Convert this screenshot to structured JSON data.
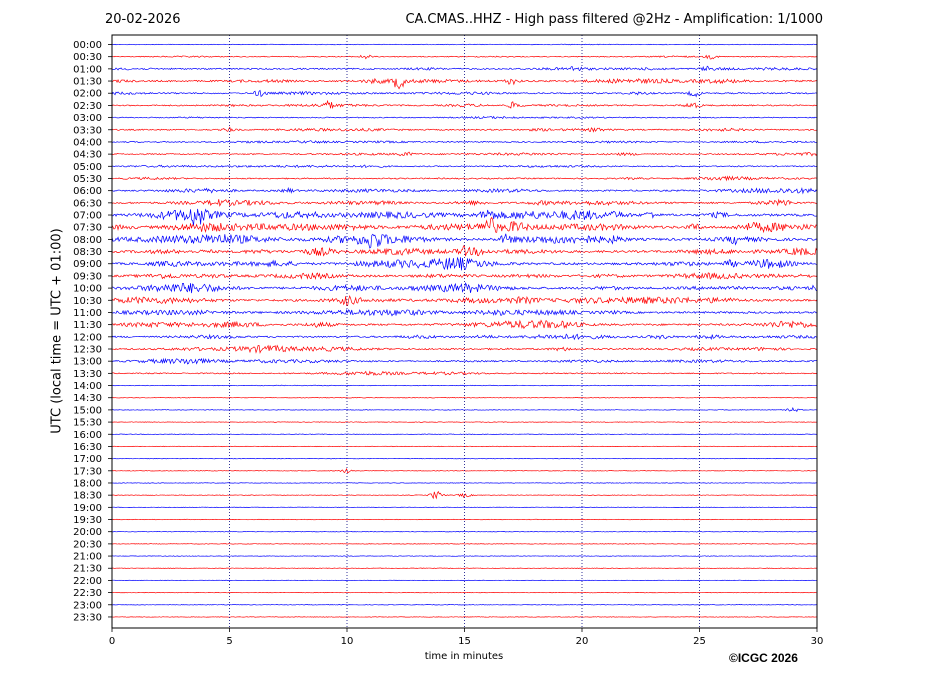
{
  "header": {
    "date": "20-02-2026",
    "title": "CA.CMAS..HHZ - High pass filtered @2Hz - Amplification: 1/1000"
  },
  "footer": {
    "copyright": "©ICGC 2026"
  },
  "colors": {
    "trace_a": "#ff0000",
    "trace_b": "#0000ff",
    "grid": "#000080",
    "axes": "#000000"
  },
  "chart_data": {
    "type": "line",
    "title": "CA.CMAS..HHZ - High pass filtered @2Hz - Amplification: 1/1000",
    "xlabel": "time in minutes",
    "ylabel": "UTC (local time = UTC + 01:00)",
    "xlim": [
      0,
      30
    ],
    "xticks": [
      "0",
      "5",
      "10",
      "15",
      "20",
      "25",
      "30"
    ],
    "vertical_gridlines_at_minutes": [
      5,
      10,
      15,
      20,
      25
    ],
    "grid_style": "dotted",
    "row_labels": [
      "00:00",
      "00:30",
      "01:00",
      "01:30",
      "02:00",
      "02:30",
      "03:00",
      "03:30",
      "04:00",
      "04:30",
      "05:00",
      "05:30",
      "06:00",
      "06:30",
      "07:00",
      "07:30",
      "08:00",
      "08:30",
      "09:00",
      "09:30",
      "10:00",
      "10:30",
      "11:00",
      "11:30",
      "12:00",
      "12:30",
      "13:00",
      "13:30",
      "14:00",
      "14:30",
      "15:00",
      "15:30",
      "16:00",
      "16:30",
      "17:00",
      "17:30",
      "18:00",
      "18:30",
      "19:00",
      "19:30",
      "20:00",
      "20:30",
      "21:00",
      "21:30",
      "22:00",
      "22:30",
      "23:00",
      "23:30"
    ],
    "row_colors_pattern": [
      "blue",
      "red"
    ],
    "rows": [
      {
        "label": "00:00",
        "activity": 0.05,
        "events": []
      },
      {
        "label": "00:30",
        "activity": 0.15,
        "events": [
          {
            "minute": 10.8,
            "amp": 2
          },
          {
            "minute": 25.5,
            "amp": 2
          }
        ]
      },
      {
        "label": "01:00",
        "activity": 0.35,
        "events": [
          {
            "minute": 19.7,
            "amp": 2
          },
          {
            "minute": 25.3,
            "amp": 2
          }
        ]
      },
      {
        "label": "01:30",
        "activity": 0.45,
        "events": [
          {
            "minute": 12.2,
            "amp": 7
          },
          {
            "minute": 17.0,
            "amp": 3
          }
        ]
      },
      {
        "label": "02:00",
        "activity": 0.35,
        "events": [
          {
            "minute": 6.3,
            "amp": 3
          },
          {
            "minute": 24.8,
            "amp": 3
          }
        ]
      },
      {
        "label": "02:30",
        "activity": 0.3,
        "events": [
          {
            "minute": 9.2,
            "amp": 3
          },
          {
            "minute": 17.1,
            "amp": 3
          },
          {
            "minute": 24.7,
            "amp": 2
          }
        ]
      },
      {
        "label": "03:00",
        "activity": 0.2,
        "events": []
      },
      {
        "label": "03:30",
        "activity": 0.3,
        "events": [
          {
            "minute": 5.0,
            "amp": 2
          },
          {
            "minute": 20.6,
            "amp": 2
          }
        ]
      },
      {
        "label": "04:00",
        "activity": 0.25,
        "events": []
      },
      {
        "label": "04:30",
        "activity": 0.3,
        "events": [
          {
            "minute": 12.5,
            "amp": 2
          }
        ]
      },
      {
        "label": "05:00",
        "activity": 0.25,
        "events": []
      },
      {
        "label": "05:30",
        "activity": 0.3,
        "events": []
      },
      {
        "label": "06:00",
        "activity": 0.4,
        "events": [
          {
            "minute": 7.5,
            "amp": 2
          }
        ]
      },
      {
        "label": "06:30",
        "activity": 0.5,
        "events": [
          {
            "minute": 28.6,
            "amp": 3
          }
        ]
      },
      {
        "label": "07:00",
        "activity": 0.75,
        "events": [
          {
            "minute": 3.6,
            "amp": 8
          },
          {
            "minute": 16.0,
            "amp": 5
          },
          {
            "minute": 22.9,
            "amp": 3
          }
        ]
      },
      {
        "label": "07:30",
        "activity": 0.75,
        "events": [
          {
            "minute": 16.0,
            "amp": 8
          },
          {
            "minute": 17.2,
            "amp": 4
          },
          {
            "minute": 24.8,
            "amp": 3
          }
        ]
      },
      {
        "label": "08:00",
        "activity": 0.7,
        "events": [
          {
            "minute": 11.1,
            "amp": 6
          },
          {
            "minute": 16.8,
            "amp": 4
          },
          {
            "minute": 26.5,
            "amp": 3
          }
        ]
      },
      {
        "label": "08:30",
        "activity": 0.65,
        "events": [
          {
            "minute": 15.0,
            "amp": 4
          },
          {
            "minute": 15.6,
            "amp": 3
          }
        ]
      },
      {
        "label": "09:00",
        "activity": 0.65,
        "events": [
          {
            "minute": 26.3,
            "amp": 3
          }
        ]
      },
      {
        "label": "09:30",
        "activity": 0.6,
        "events": []
      },
      {
        "label": "10:00",
        "activity": 0.6,
        "events": [
          {
            "minute": 30.0,
            "amp": 3
          }
        ]
      },
      {
        "label": "10:30",
        "activity": 0.6,
        "events": [
          {
            "minute": 10.0,
            "amp": 3
          }
        ]
      },
      {
        "label": "11:00",
        "activity": 0.55,
        "events": []
      },
      {
        "label": "11:30",
        "activity": 0.55,
        "events": []
      },
      {
        "label": "12:00",
        "activity": 0.45,
        "events": []
      },
      {
        "label": "12:30",
        "activity": 0.45,
        "events": []
      },
      {
        "label": "13:00",
        "activity": 0.4,
        "events": []
      },
      {
        "label": "13:30",
        "activity": 0.25,
        "events": []
      },
      {
        "label": "14:00",
        "activity": 0.04,
        "events": []
      },
      {
        "label": "14:30",
        "activity": 0.02,
        "events": []
      },
      {
        "label": "15:00",
        "activity": 0.02,
        "events": [
          {
            "minute": 29.0,
            "amp": 2
          }
        ]
      },
      {
        "label": "15:30",
        "activity": 0.02,
        "events": []
      },
      {
        "label": "16:00",
        "activity": 0.02,
        "events": []
      },
      {
        "label": "16:30",
        "activity": 0.02,
        "events": []
      },
      {
        "label": "17:00",
        "activity": 0.02,
        "events": []
      },
      {
        "label": "17:30",
        "activity": 0.02,
        "events": [
          {
            "minute": 10.0,
            "amp": 2
          }
        ]
      },
      {
        "label": "18:00",
        "activity": 0.02,
        "events": []
      },
      {
        "label": "18:30",
        "activity": 0.02,
        "events": [
          {
            "minute": 13.8,
            "amp": 4
          },
          {
            "minute": 15.0,
            "amp": 2
          }
        ]
      },
      {
        "label": "19:00",
        "activity": 0.01,
        "events": []
      },
      {
        "label": "19:30",
        "activity": 0.01,
        "events": []
      },
      {
        "label": "20:00",
        "activity": 0.01,
        "events": []
      },
      {
        "label": "20:30",
        "activity": 0.01,
        "events": []
      },
      {
        "label": "21:00",
        "activity": 0.01,
        "events": []
      },
      {
        "label": "21:30",
        "activity": 0.01,
        "events": []
      },
      {
        "label": "22:00",
        "activity": 0.01,
        "events": []
      },
      {
        "label": "22:30",
        "activity": 0.01,
        "events": []
      },
      {
        "label": "23:00",
        "activity": 0.01,
        "events": []
      },
      {
        "label": "23:30",
        "activity": 0.01,
        "events": []
      }
    ]
  }
}
